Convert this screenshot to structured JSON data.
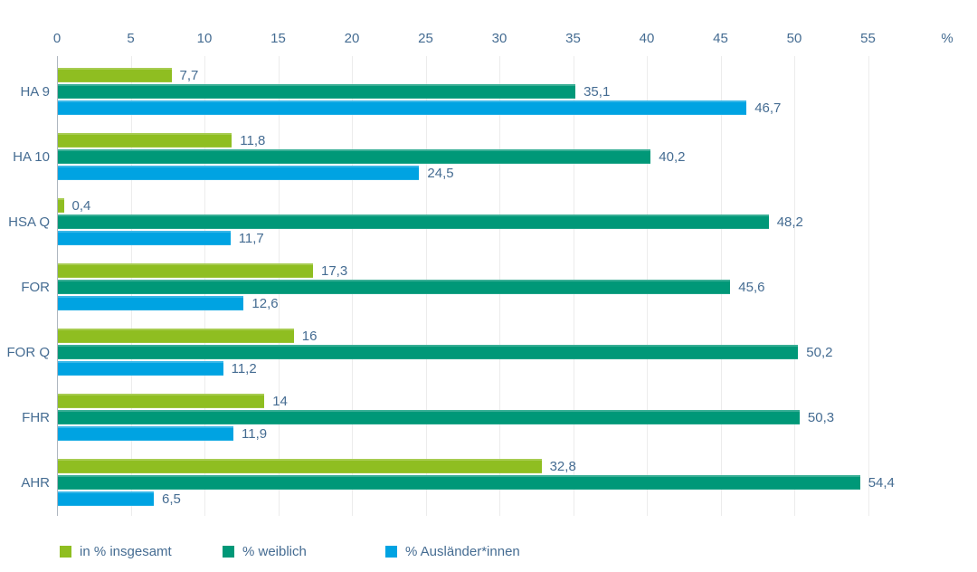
{
  "chart_data": {
    "type": "bar",
    "orientation": "horizontal",
    "title": "",
    "categories": [
      "HA 9",
      "HA 10",
      "HSA Q",
      "FOR",
      "FOR Q",
      "FHR",
      "AHR"
    ],
    "series": [
      {
        "name": "in % insgesamt",
        "color": "#8FBE21",
        "values": [
          7.7,
          11.8,
          0.4,
          17.3,
          16,
          14,
          32.8
        ],
        "value_labels": [
          "7,7",
          "11,8",
          "0,4",
          "17,3",
          "16",
          "14",
          "32,8"
        ]
      },
      {
        "name": "% weiblich",
        "color": "#009878",
        "values": [
          35.1,
          40.2,
          48.2,
          45.6,
          50.2,
          50.3,
          54.4
        ],
        "value_labels": [
          "35,1",
          "40,2",
          "48,2",
          "45,6",
          "50,2",
          "50,3",
          "54,4"
        ]
      },
      {
        "name": "% Ausländer*innen",
        "color": "#00A3E2",
        "values": [
          46.7,
          24.5,
          11.7,
          12.6,
          11.2,
          11.9,
          6.5
        ],
        "value_labels": [
          "46,7",
          "24,5",
          "11,7",
          "12,6",
          "11,2",
          "11,9",
          "6,5"
        ]
      }
    ],
    "axis": {
      "min": 0,
      "max": 55,
      "step": 5,
      "tick_labels": [
        "0",
        "5",
        "10",
        "15",
        "20",
        "25",
        "30",
        "35",
        "40",
        "45",
        "50",
        "55"
      ],
      "unit_label": "%"
    },
    "legend_position": "bottom",
    "grid": "vertical-only",
    "xlabel": "",
    "ylabel": ""
  },
  "colors": {
    "text": "#456C92",
    "gridline": "#ECECEC",
    "axis_line": "#AEB6BF",
    "background": "#FFFFFF"
  }
}
